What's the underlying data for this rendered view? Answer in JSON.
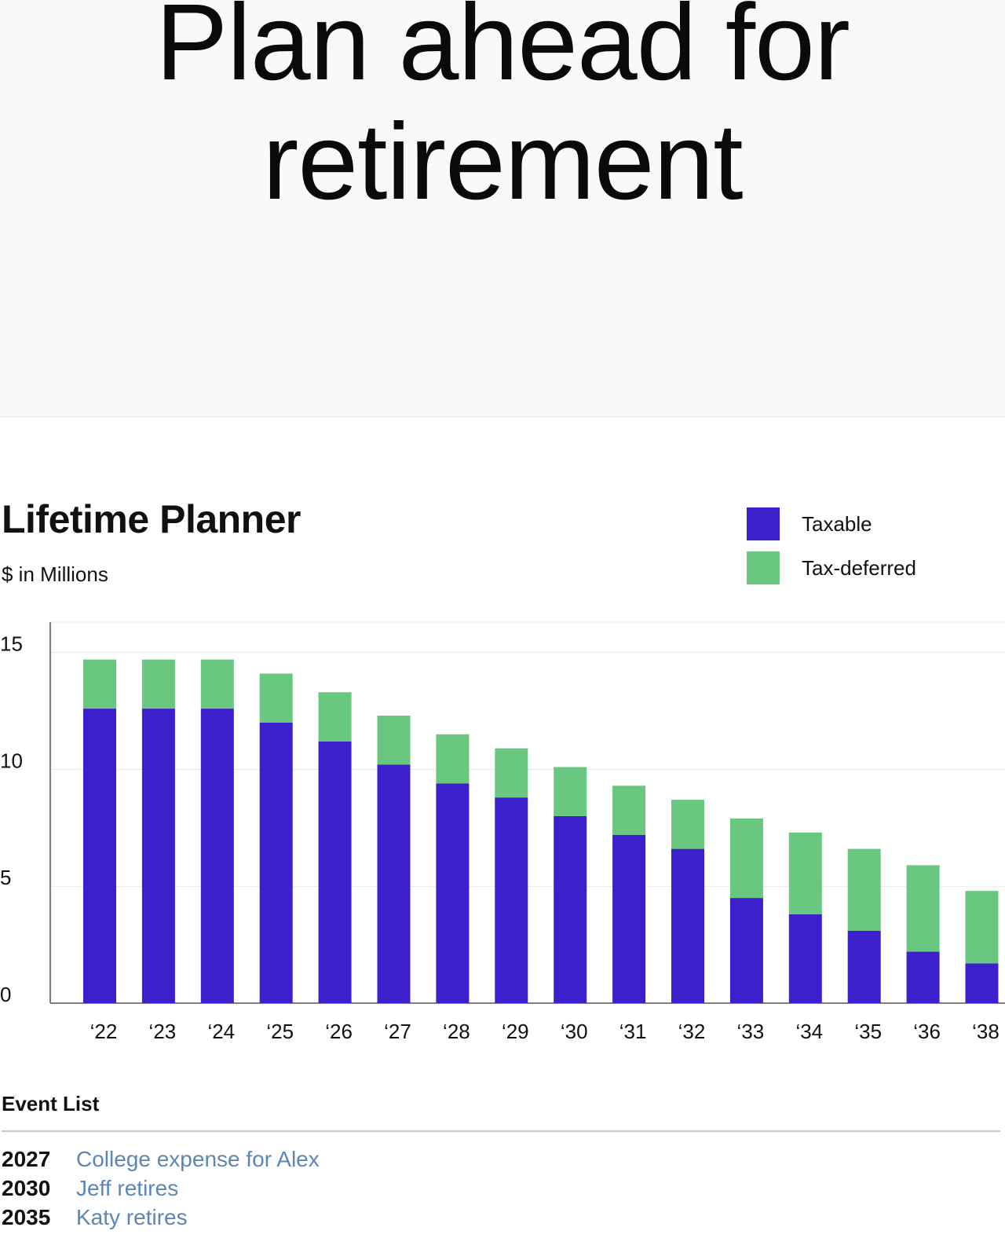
{
  "hero": {
    "title_line1": "Plan ahead for",
    "title_line2": "retirement"
  },
  "planner": {
    "title": "Lifetime Planner",
    "subtitle": "$ in Millions"
  },
  "colors": {
    "taxable": "#3b20cc",
    "tax_deferred": "#69c77f"
  },
  "chart_data": {
    "type": "bar",
    "stacked": true,
    "categories": [
      "‘22",
      "‘23",
      "‘24",
      "‘25",
      "‘26",
      "‘27",
      "‘28",
      "‘29",
      "‘30",
      "‘31",
      "‘32",
      "‘33",
      "‘34",
      "‘35",
      "‘36",
      "‘38"
    ],
    "series": [
      {
        "name": "Taxable",
        "color": "#3b20cc",
        "values": [
          12.6,
          12.6,
          12.6,
          12.0,
          11.2,
          10.2,
          9.4,
          8.8,
          8.0,
          7.2,
          6.6,
          4.5,
          3.8,
          3.1,
          2.2,
          1.7
        ]
      },
      {
        "name": "Tax-deferred",
        "color": "#69c77f",
        "values": [
          2.1,
          2.1,
          2.1,
          2.1,
          2.1,
          2.1,
          2.1,
          2.1,
          2.1,
          2.1,
          2.1,
          3.4,
          3.5,
          3.5,
          3.7,
          3.1
        ]
      }
    ],
    "yticks": [
      0,
      5,
      10,
      15
    ],
    "ylim": [
      0,
      16.3
    ],
    "grid": true,
    "legend_position": "top-right"
  },
  "events": {
    "title": "Event List",
    "items": [
      {
        "year": "2027",
        "label": "College expense for Alex"
      },
      {
        "year": "2030",
        "label": "Jeff retires"
      },
      {
        "year": "2035",
        "label": "Katy retires"
      }
    ]
  }
}
